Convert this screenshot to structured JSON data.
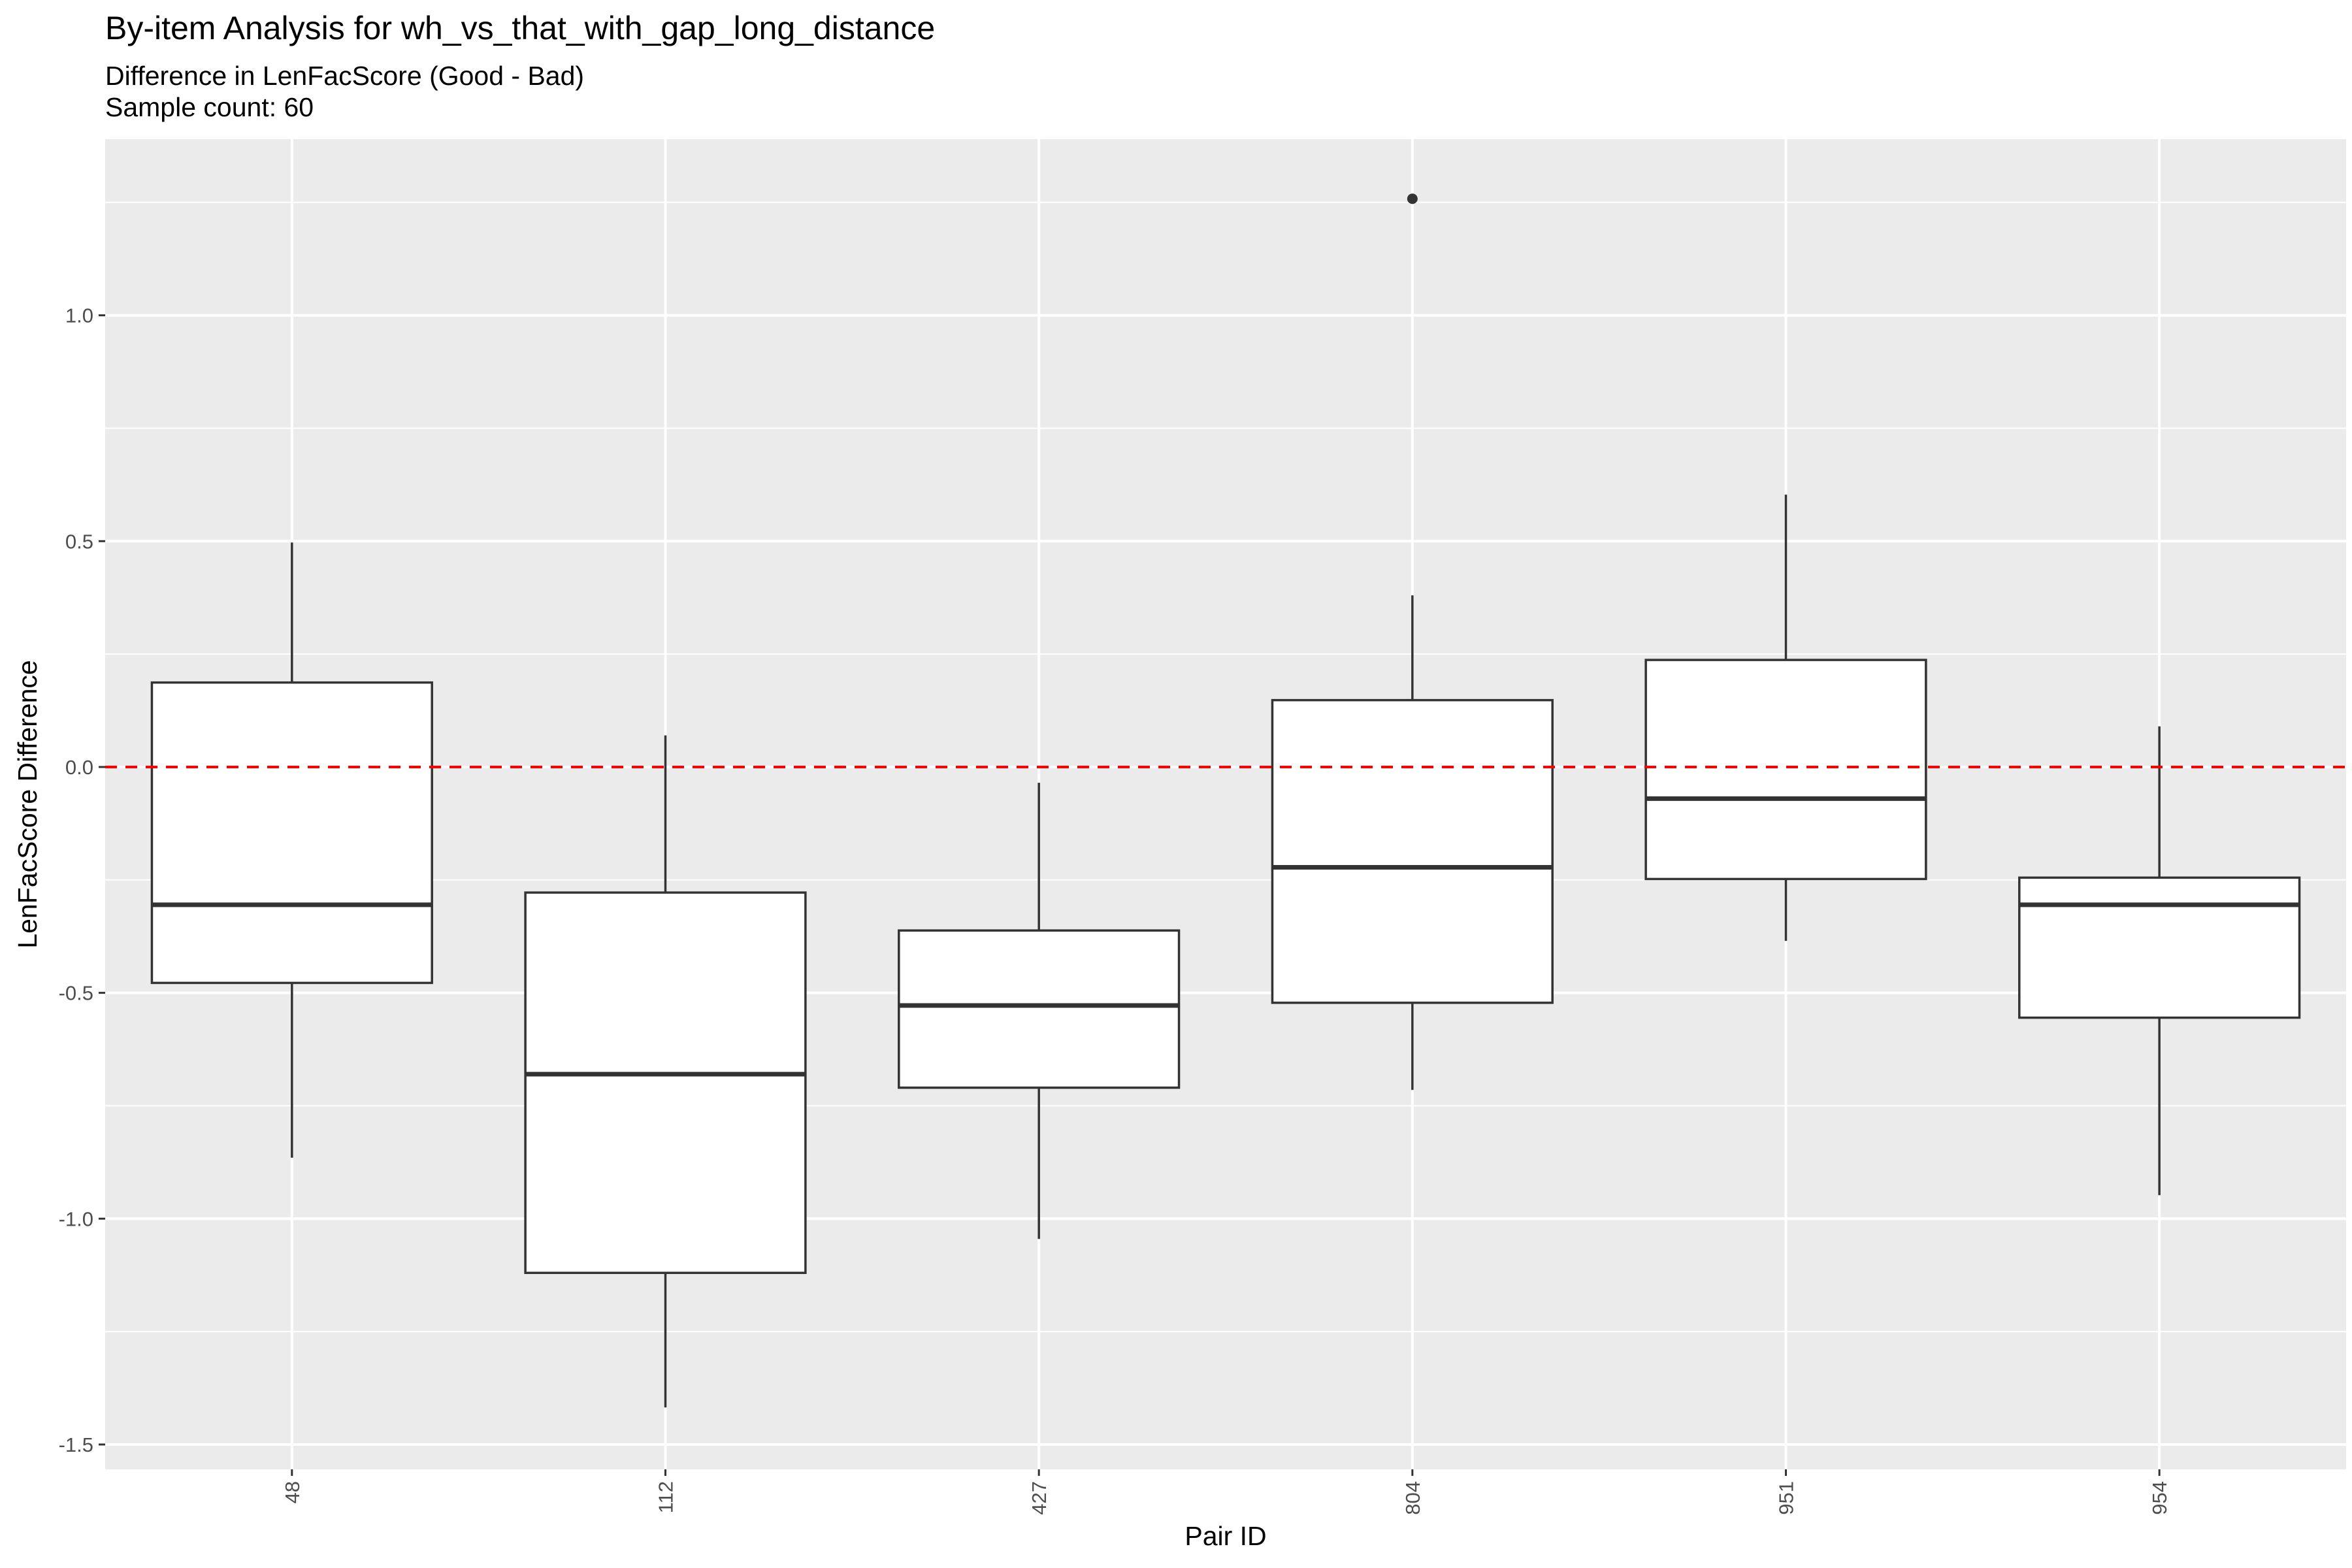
{
  "chart_data": {
    "type": "boxplot",
    "title": "By-item Analysis for wh_vs_that_with_gap_long_distance",
    "subtitle_line1": "Difference in LenFacScore (Good - Bad)",
    "subtitle_line2": "Sample count: 60",
    "xlabel": "Pair ID",
    "ylabel": "LenFacScore Difference",
    "ylim": [
      -1.555,
      1.39
    ],
    "y_ticks": [
      -1.5,
      -1.0,
      -0.5,
      0.0,
      0.5,
      1.0
    ],
    "y_tick_labels": [
      "-1.5",
      "-1.0",
      "-0.5",
      "0.0",
      "0.5",
      "1.0"
    ],
    "categories": [
      "48",
      "112",
      "427",
      "804",
      "951",
      "954"
    ],
    "boxes": [
      {
        "id": "48",
        "whisker_low": -0.865,
        "q1": -0.478,
        "median": -0.305,
        "q3": 0.187,
        "whisker_high": 0.497,
        "outliers": []
      },
      {
        "id": "112",
        "whisker_low": -1.418,
        "q1": -1.12,
        "median": -0.68,
        "q3": -0.278,
        "whisker_high": 0.07,
        "outliers": []
      },
      {
        "id": "427",
        "whisker_low": -1.045,
        "q1": -0.71,
        "median": -0.528,
        "q3": -0.362,
        "whisker_high": -0.035,
        "outliers": []
      },
      {
        "id": "804",
        "whisker_low": -0.715,
        "q1": -0.522,
        "median": -0.222,
        "q3": 0.148,
        "whisker_high": 0.38,
        "outliers": [
          1.258
        ]
      },
      {
        "id": "951",
        "whisker_low": -0.385,
        "q1": -0.248,
        "median": -0.07,
        "q3": 0.237,
        "whisker_high": 0.603,
        "outliers": []
      },
      {
        "id": "954",
        "whisker_low": -0.948,
        "q1": -0.555,
        "median": -0.305,
        "q3": -0.245,
        "whisker_high": 0.09,
        "outliers": []
      }
    ],
    "reference_line": {
      "y": 0.0,
      "color": "#ff0000",
      "style": "dashed"
    },
    "colors": {
      "panel_background": "#ebebeb",
      "grid": "#ffffff",
      "box_fill": "#ffffff",
      "box_stroke": "#333333",
      "tick_text": "#4d4d4d"
    },
    "grid": true,
    "legend": "none"
  }
}
